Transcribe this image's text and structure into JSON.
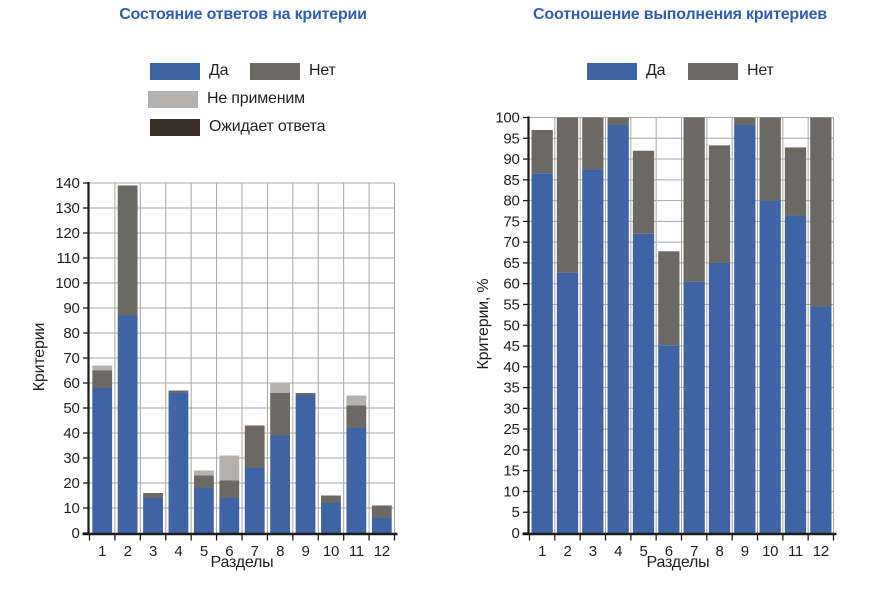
{
  "palette": {
    "title": "#2F5FAE",
    "axis": "#1C1A19",
    "grid": "#A8A6A4",
    "text": "#231F20",
    "background": "#FFFFFF"
  },
  "chart_data": [
    {
      "type": "bar",
      "stacked": true,
      "title": "Состояние ответов на критерии",
      "xlabel": "Разделы",
      "ylabel": "Критерии",
      "ylim": [
        0,
        140
      ],
      "ytick_step": 10,
      "grid": true,
      "legend_position": "top",
      "categories": [
        "1",
        "2",
        "3",
        "4",
        "5",
        "6",
        "7",
        "8",
        "9",
        "10",
        "11",
        "12"
      ],
      "series": [
        {
          "name": "Да",
          "color": "#3E64A6",
          "values": [
            58,
            87,
            14,
            56,
            18,
            14,
            26,
            39,
            55,
            12,
            42,
            6
          ]
        },
        {
          "name": "Нет",
          "color": "#6C6864",
          "values": [
            7,
            52,
            2,
            1,
            5,
            7,
            17,
            17,
            1,
            3,
            9,
            5
          ]
        },
        {
          "name": "Не применим",
          "color": "#B3B2B1",
          "values": [
            2,
            0,
            0,
            0,
            2,
            10,
            0,
            4,
            0,
            0,
            4,
            0
          ]
        },
        {
          "name": "Ожидает ответа",
          "color": "#37312A",
          "values": [
            0,
            0,
            0,
            0,
            0,
            0,
            0,
            0,
            0,
            0,
            0,
            0
          ]
        }
      ]
    },
    {
      "type": "bar",
      "stacked": true,
      "title": "Соотношение выполнения критериев",
      "xlabel": "Разделы",
      "ylabel": "Критерии, %",
      "ylim": [
        0,
        100
      ],
      "ytick_step": 5,
      "grid": true,
      "legend_position": "top",
      "categories": [
        "1",
        "2",
        "3",
        "4",
        "5",
        "6",
        "7",
        "8",
        "9",
        "10",
        "11",
        "12"
      ],
      "series": [
        {
          "name": "Да",
          "color": "#3E64A6",
          "values": [
            86.6,
            62.6,
            87.5,
            98.2,
            72,
            45.2,
            60.5,
            65,
            98.2,
            80,
            76.4,
            54.5
          ]
        },
        {
          "name": "Нет",
          "color": "#6C6864",
          "values": [
            10.4,
            37.4,
            12.5,
            1.8,
            20,
            22.6,
            39.5,
            28.3,
            1.8,
            20,
            16.4,
            45.5
          ]
        }
      ]
    }
  ]
}
